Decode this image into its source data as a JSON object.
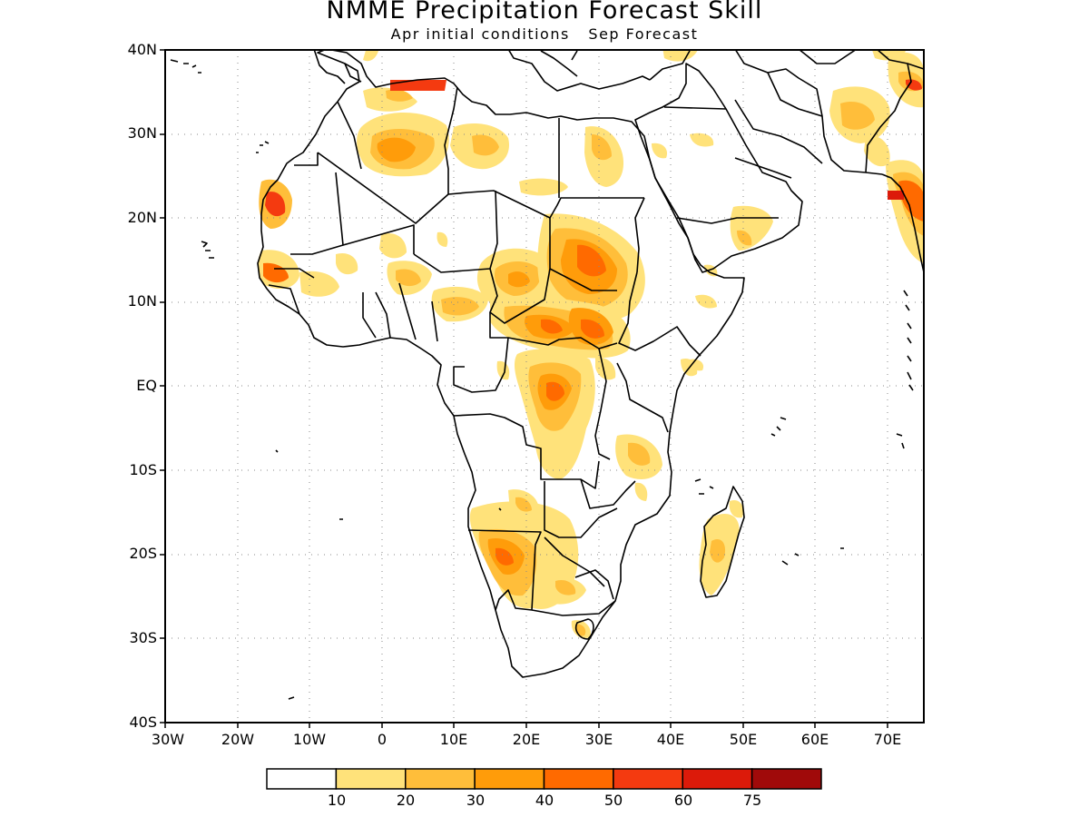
{
  "title": "NMME Precipitation Forecast Skill",
  "subtitle": {
    "init": "Apr initial conditions",
    "forecast": "Sep Forecast"
  },
  "map": {
    "lon_range": [
      -30,
      75
    ],
    "lat_range": [
      -40,
      40
    ],
    "lat_ticks": [
      {
        "label": "40N"
      },
      {
        "label": "30N"
      },
      {
        "label": "20N"
      },
      {
        "label": "10N"
      },
      {
        "label": "EQ"
      },
      {
        "label": "10S"
      },
      {
        "label": "20S"
      },
      {
        "label": "30S"
      },
      {
        "label": "40S"
      }
    ],
    "lon_ticks": [
      {
        "label": "30W"
      },
      {
        "label": "20W"
      },
      {
        "label": "10W"
      },
      {
        "label": "0"
      },
      {
        "label": "10E"
      },
      {
        "label": "20E"
      },
      {
        "label": "30E"
      },
      {
        "label": "40E"
      },
      {
        "label": "50E"
      },
      {
        "label": "60E"
      },
      {
        "label": "70E"
      }
    ],
    "gridlines": "dotted"
  },
  "colorbar": {
    "colors": [
      "#ffffff",
      "#ffe27a",
      "#ffbe3a",
      "#ff9c0a",
      "#ff6a00",
      "#f43a10",
      "#dc1a0a",
      "#a00a0a"
    ],
    "labels": [
      "10",
      "20",
      "30",
      "40",
      "50",
      "60",
      "75"
    ]
  }
}
